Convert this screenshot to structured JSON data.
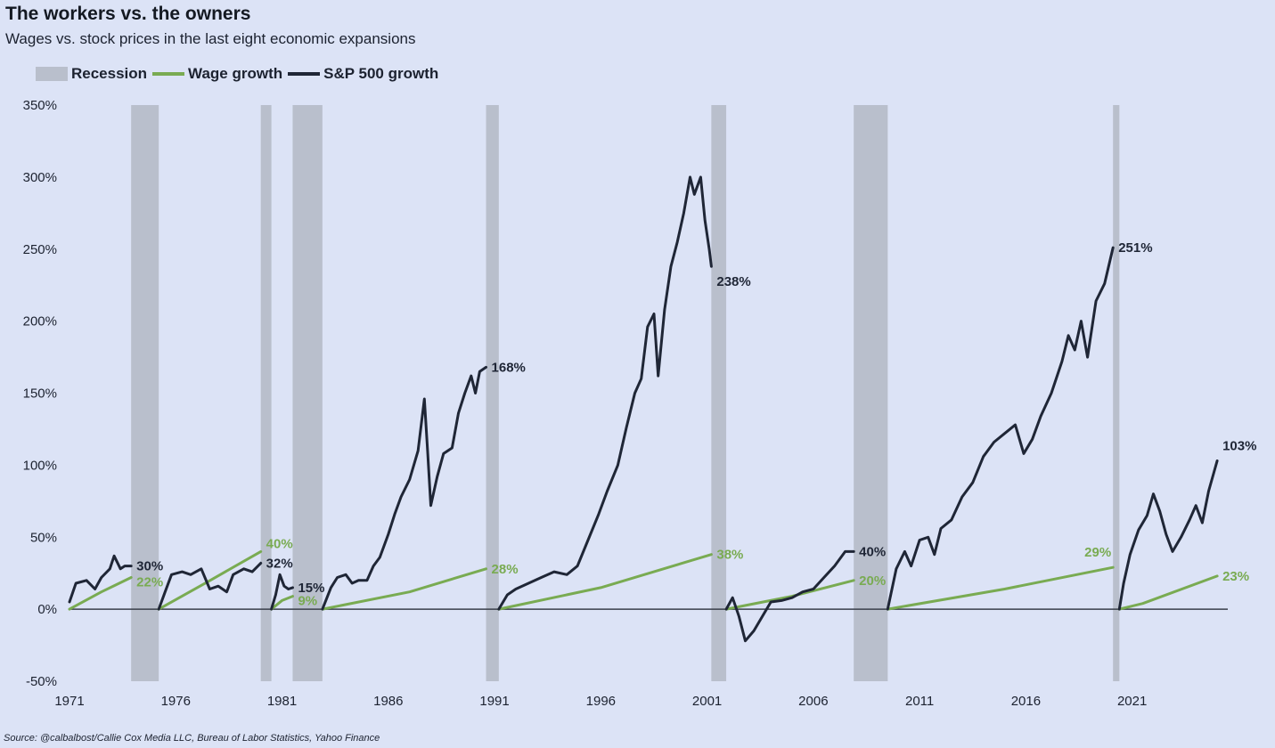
{
  "title": "The workers vs. the owners",
  "subtitle": "Wages vs. stock prices in the last eight economic expansions",
  "source": "Source: @calbalbost/Callie Cox Media LLC, Bureau of Labor Statistics, Yahoo Finance",
  "colors": {
    "background": "#dce3f6",
    "recession": "#b9bfcc",
    "wage": "#79ab52",
    "sp500": "#1f2636",
    "zero_line": "#3a3f4a"
  },
  "legend": [
    {
      "label": "Recession",
      "kind": "rect"
    },
    {
      "label": "Wage growth",
      "kind": "line"
    },
    {
      "label": "S&P 500 growth",
      "kind": "line"
    }
  ],
  "chart_data": {
    "type": "line",
    "x_ticks": [
      "1971",
      "1976",
      "1981",
      "1986",
      "1991",
      "1996",
      "2001",
      "2006",
      "2011",
      "2016",
      "2021"
    ],
    "y_ticks": [
      "350%",
      "300%",
      "250%",
      "200%",
      "150%",
      "100%",
      "50%",
      "0%",
      "-50%"
    ],
    "xlim": [
      1971,
      2025.5
    ],
    "ylim": [
      -50,
      350
    ],
    "recessions": [
      [
        1973.9,
        1975.2
      ],
      [
        1980.0,
        1980.5
      ],
      [
        1981.5,
        1982.9
      ],
      [
        1990.6,
        1991.2
      ],
      [
        2001.2,
        2001.9
      ],
      [
        2007.9,
        2009.5
      ],
      [
        2020.1,
        2020.4
      ]
    ],
    "series": [
      {
        "name": "Wage growth",
        "segments": [
          {
            "points": [
              [
                1971.0,
                0
              ],
              [
                1972.5,
                12
              ],
              [
                1973.9,
                22
              ]
            ],
            "label": "22%"
          },
          {
            "points": [
              [
                1975.2,
                0
              ],
              [
                1977.5,
                19
              ],
              [
                1980.0,
                40
              ]
            ],
            "label": "40%"
          },
          {
            "points": [
              [
                1980.5,
                0
              ],
              [
                1981.0,
                6
              ],
              [
                1981.5,
                9
              ]
            ],
            "label": "9%"
          },
          {
            "points": [
              [
                1982.9,
                0
              ],
              [
                1987.0,
                12
              ],
              [
                1990.6,
                28
              ]
            ],
            "label": "28%"
          },
          {
            "points": [
              [
                1991.2,
                0
              ],
              [
                1996.0,
                15
              ],
              [
                2001.2,
                38
              ]
            ],
            "label": "38%"
          },
          {
            "points": [
              [
                2001.9,
                0
              ],
              [
                2005.0,
                9
              ],
              [
                2007.9,
                20
              ]
            ],
            "label": "20%"
          },
          {
            "points": [
              [
                2009.5,
                0
              ],
              [
                2015.0,
                14
              ],
              [
                2020.1,
                29
              ]
            ],
            "label": "29%"
          },
          {
            "points": [
              [
                2020.4,
                0
              ],
              [
                2021.5,
                4
              ],
              [
                2025.0,
                23
              ]
            ],
            "label": "23%"
          }
        ]
      },
      {
        "name": "S&P 500 growth",
        "segments": [
          {
            "points": [
              [
                1971.0,
                5
              ],
              [
                1971.3,
                18
              ],
              [
                1971.8,
                20
              ],
              [
                1972.2,
                14
              ],
              [
                1972.5,
                22
              ],
              [
                1972.9,
                28
              ],
              [
                1973.1,
                37
              ],
              [
                1973.4,
                28
              ],
              [
                1973.6,
                30
              ],
              [
                1973.9,
                30
              ]
            ],
            "label": "30%"
          },
          {
            "points": [
              [
                1975.2,
                0
              ],
              [
                1975.5,
                12
              ],
              [
                1975.8,
                24
              ],
              [
                1976.3,
                26
              ],
              [
                1976.7,
                24
              ],
              [
                1977.2,
                28
              ],
              [
                1977.6,
                14
              ],
              [
                1978.0,
                16
              ],
              [
                1978.4,
                12
              ],
              [
                1978.7,
                24
              ],
              [
                1979.2,
                28
              ],
              [
                1979.6,
                26
              ],
              [
                1980.0,
                32
              ]
            ],
            "label": "32%"
          },
          {
            "points": [
              [
                1980.5,
                0
              ],
              [
                1980.7,
                10
              ],
              [
                1980.9,
                24
              ],
              [
                1981.1,
                16
              ],
              [
                1981.3,
                14
              ],
              [
                1981.5,
                15
              ]
            ],
            "label": "15%"
          },
          {
            "points": [
              [
                1982.9,
                0
              ],
              [
                1983.3,
                15
              ],
              [
                1983.6,
                22
              ],
              [
                1984.0,
                24
              ],
              [
                1984.3,
                18
              ],
              [
                1984.6,
                20
              ],
              [
                1985.0,
                20
              ],
              [
                1985.3,
                30
              ],
              [
                1985.6,
                36
              ],
              [
                1986.0,
                52
              ],
              [
                1986.3,
                66
              ],
              [
                1986.6,
                78
              ],
              [
                1987.0,
                90
              ],
              [
                1987.4,
                110
              ],
              [
                1987.7,
                146
              ],
              [
                1987.85,
                110
              ],
              [
                1988.0,
                72
              ],
              [
                1988.3,
                92
              ],
              [
                1988.6,
                108
              ],
              [
                1989.0,
                112
              ],
              [
                1989.3,
                136
              ],
              [
                1989.6,
                150
              ],
              [
                1989.9,
                162
              ],
              [
                1990.1,
                150
              ],
              [
                1990.3,
                165
              ],
              [
                1990.6,
                168
              ]
            ],
            "label": "168%"
          },
          {
            "points": [
              [
                1991.2,
                0
              ],
              [
                1991.6,
                10
              ],
              [
                1992.0,
                14
              ],
              [
                1992.6,
                18
              ],
              [
                1993.2,
                22
              ],
              [
                1993.8,
                26
              ],
              [
                1994.4,
                24
              ],
              [
                1994.9,
                30
              ],
              [
                1995.4,
                48
              ],
              [
                1995.9,
                66
              ],
              [
                1996.3,
                82
              ],
              [
                1996.8,
                100
              ],
              [
                1997.2,
                126
              ],
              [
                1997.6,
                150
              ],
              [
                1997.9,
                160
              ],
              [
                1998.2,
                196
              ],
              [
                1998.5,
                205
              ],
              [
                1998.7,
                162
              ],
              [
                1999.0,
                208
              ],
              [
                1999.3,
                238
              ],
              [
                1999.6,
                255
              ],
              [
                1999.9,
                275
              ],
              [
                2000.2,
                300
              ],
              [
                2000.4,
                288
              ],
              [
                2000.7,
                300
              ],
              [
                2000.9,
                270
              ],
              [
                2001.1,
                250
              ],
              [
                2001.2,
                238
              ]
            ],
            "label": "238%"
          },
          {
            "points": [
              [
                2001.9,
                0
              ],
              [
                2002.2,
                8
              ],
              [
                2002.5,
                -5
              ],
              [
                2002.8,
                -22
              ],
              [
                2003.2,
                -15
              ],
              [
                2003.6,
                -5
              ],
              [
                2004.0,
                5
              ],
              [
                2004.5,
                6
              ],
              [
                2005.0,
                8
              ],
              [
                2005.5,
                12
              ],
              [
                2006.0,
                14
              ],
              [
                2006.5,
                22
              ],
              [
                2007.0,
                30
              ],
              [
                2007.5,
                40
              ],
              [
                2007.9,
                40
              ]
            ],
            "label": "40%"
          },
          {
            "points": [
              [
                2009.5,
                0
              ],
              [
                2009.9,
                28
              ],
              [
                2010.3,
                40
              ],
              [
                2010.6,
                30
              ],
              [
                2011.0,
                48
              ],
              [
                2011.4,
                50
              ],
              [
                2011.7,
                38
              ],
              [
                2012.0,
                56
              ],
              [
                2012.5,
                62
              ],
              [
                2013.0,
                78
              ],
              [
                2013.5,
                88
              ],
              [
                2014.0,
                106
              ],
              [
                2014.5,
                116
              ],
              [
                2015.0,
                122
              ],
              [
                2015.5,
                128
              ],
              [
                2015.9,
                108
              ],
              [
                2016.3,
                118
              ],
              [
                2016.7,
                134
              ],
              [
                2017.2,
                150
              ],
              [
                2017.7,
                172
              ],
              [
                2018.0,
                190
              ],
              [
                2018.3,
                180
              ],
              [
                2018.6,
                200
              ],
              [
                2018.9,
                175
              ],
              [
                2019.3,
                214
              ],
              [
                2019.7,
                226
              ],
              [
                2020.1,
                251
              ]
            ],
            "label": "251%"
          },
          {
            "points": [
              [
                2020.4,
                0
              ],
              [
                2020.6,
                18
              ],
              [
                2020.9,
                38
              ],
              [
                2021.3,
                55
              ],
              [
                2021.7,
                65
              ],
              [
                2022.0,
                80
              ],
              [
                2022.3,
                68
              ],
              [
                2022.6,
                52
              ],
              [
                2022.9,
                40
              ],
              [
                2023.3,
                50
              ],
              [
                2023.7,
                62
              ],
              [
                2024.0,
                72
              ],
              [
                2024.3,
                60
              ],
              [
                2024.6,
                82
              ],
              [
                2025.0,
                103
              ]
            ],
            "label": "103%"
          }
        ]
      }
    ]
  }
}
